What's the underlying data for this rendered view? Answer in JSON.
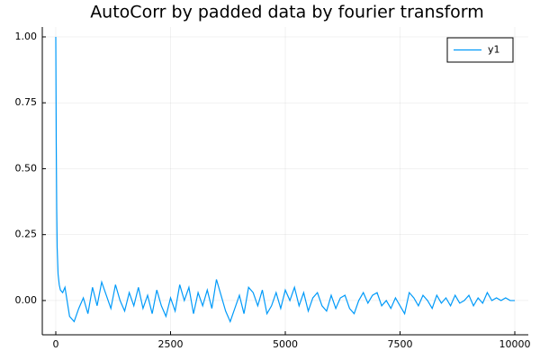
{
  "chart_data": {
    "type": "line",
    "title": "AutoCorr by padded data by fourier transform",
    "x": [
      0,
      10,
      20,
      30,
      50,
      75,
      100,
      150,
      200,
      300,
      400,
      500,
      600,
      700,
      800,
      900,
      1000,
      1100,
      1200,
      1300,
      1400,
      1500,
      1600,
      1700,
      1800,
      1900,
      2000,
      2100,
      2200,
      2300,
      2400,
      2500,
      2600,
      2700,
      2800,
      2900,
      3000,
      3100,
      3200,
      3300,
      3400,
      3500,
      3600,
      3700,
      3800,
      3900,
      4000,
      4100,
      4200,
      4300,
      4400,
      4500,
      4600,
      4700,
      4800,
      4900,
      5000,
      5100,
      5200,
      5300,
      5400,
      5500,
      5600,
      5700,
      5800,
      5900,
      6000,
      6100,
      6200,
      6300,
      6400,
      6500,
      6600,
      6700,
      6800,
      6900,
      7000,
      7100,
      7200,
      7300,
      7400,
      7500,
      7600,
      7700,
      7800,
      7900,
      8000,
      8100,
      8200,
      8300,
      8400,
      8500,
      8600,
      8700,
      8800,
      8900,
      9000,
      9100,
      9200,
      9300,
      9400,
      9500,
      9600,
      9700,
      9800,
      9900,
      10000
    ],
    "series": [
      {
        "name": "y1",
        "color": "#009af9",
        "values": [
          1.0,
          0.6,
          0.35,
          0.2,
          0.1,
          0.06,
          0.04,
          0.03,
          0.05,
          -0.06,
          -0.08,
          -0.03,
          0.01,
          -0.05,
          0.05,
          -0.02,
          0.07,
          0.02,
          -0.03,
          0.06,
          0.0,
          -0.04,
          0.03,
          -0.02,
          0.05,
          -0.03,
          0.02,
          -0.05,
          0.04,
          -0.02,
          -0.06,
          0.01,
          -0.04,
          0.06,
          0.0,
          0.05,
          -0.05,
          0.03,
          -0.02,
          0.04,
          -0.03,
          0.08,
          0.02,
          -0.04,
          -0.08,
          -0.03,
          0.02,
          -0.05,
          0.05,
          0.03,
          -0.02,
          0.04,
          -0.05,
          -0.02,
          0.03,
          -0.03,
          0.04,
          0.0,
          0.05,
          -0.02,
          0.03,
          -0.04,
          0.01,
          0.03,
          -0.02,
          -0.04,
          0.02,
          -0.03,
          0.01,
          0.02,
          -0.03,
          -0.05,
          0.0,
          0.03,
          -0.01,
          0.02,
          0.03,
          -0.02,
          0.0,
          -0.03,
          0.01,
          -0.02,
          -0.05,
          0.03,
          0.01,
          -0.02,
          0.02,
          0.0,
          -0.03,
          0.02,
          -0.01,
          0.01,
          -0.02,
          0.02,
          -0.01,
          0.0,
          0.02,
          -0.02,
          0.01,
          -0.01,
          0.03,
          0.0,
          0.01,
          0.0,
          0.01,
          0.0,
          0.0
        ]
      }
    ],
    "xlim": [
      -294,
      10294
    ],
    "ylim": [
      -0.13,
      1.0375
    ],
    "xticks": [
      0,
      2500,
      5000,
      7500,
      10000
    ],
    "yticks": [
      {
        "value": 0,
        "label": "0.00"
      },
      {
        "value": 0.25,
        "label": "0.25"
      },
      {
        "value": 0.5,
        "label": "0.50"
      },
      {
        "value": 0.75,
        "label": "0.75"
      },
      {
        "value": 1,
        "label": "1.00"
      }
    ],
    "grid": true,
    "legend": "top-right"
  }
}
